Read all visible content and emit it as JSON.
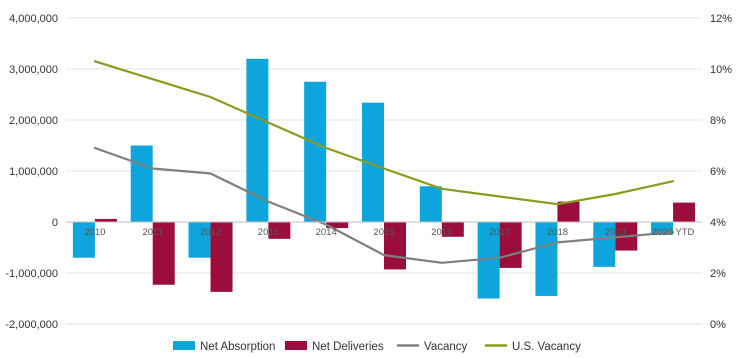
{
  "chart_data": {
    "type": "bar",
    "categories": [
      "2010",
      "2011",
      "2012",
      "2013",
      "2014",
      "2015",
      "2016",
      "2017",
      "2018",
      "2019",
      "2020 YTD"
    ],
    "series": [
      {
        "name": "Net Absorption",
        "type": "bar",
        "axis": "left",
        "color": "#0ea5dc",
        "values": [
          -700000,
          1500000,
          -700000,
          3200000,
          2750000,
          2340000,
          700000,
          -1500000,
          -1450000,
          -880000,
          -250000
        ]
      },
      {
        "name": "Net Deliveries",
        "type": "bar",
        "axis": "left",
        "color": "#9b0d3a",
        "values": [
          60000,
          -1230000,
          -1370000,
          -330000,
          -120000,
          -930000,
          -290000,
          -900000,
          400000,
          -560000,
          380000
        ]
      },
      {
        "name": "Vacancy",
        "type": "line",
        "axis": "right",
        "color": "#7f7f7f",
        "values": [
          6.9,
          6.1,
          5.9,
          4.8,
          3.9,
          2.7,
          2.4,
          2.6,
          3.2,
          3.4,
          3.6
        ]
      },
      {
        "name": "U.S. Vacancy",
        "type": "line",
        "axis": "right",
        "color": "#8c9a1e",
        "values": [
          10.3,
          9.6,
          8.9,
          7.9,
          6.9,
          6.1,
          5.3,
          5.0,
          4.7,
          5.1,
          5.6
        ]
      }
    ],
    "y_left": {
      "min": -2000000,
      "max": 4000000,
      "step": 1000000
    },
    "y_right": {
      "min": 0,
      "max": 12,
      "step": 2,
      "unit": "%"
    },
    "left_tick_labels": [
      "-2,000,000",
      "-1,000,000",
      "0",
      "1,000,000",
      "2,000,000",
      "3,000,000",
      "4,000,000"
    ],
    "right_tick_labels": [
      "0%",
      "2%",
      "4%",
      "6%",
      "8%",
      "10%",
      "12%"
    ],
    "grid": true,
    "legend_position": "bottom"
  }
}
